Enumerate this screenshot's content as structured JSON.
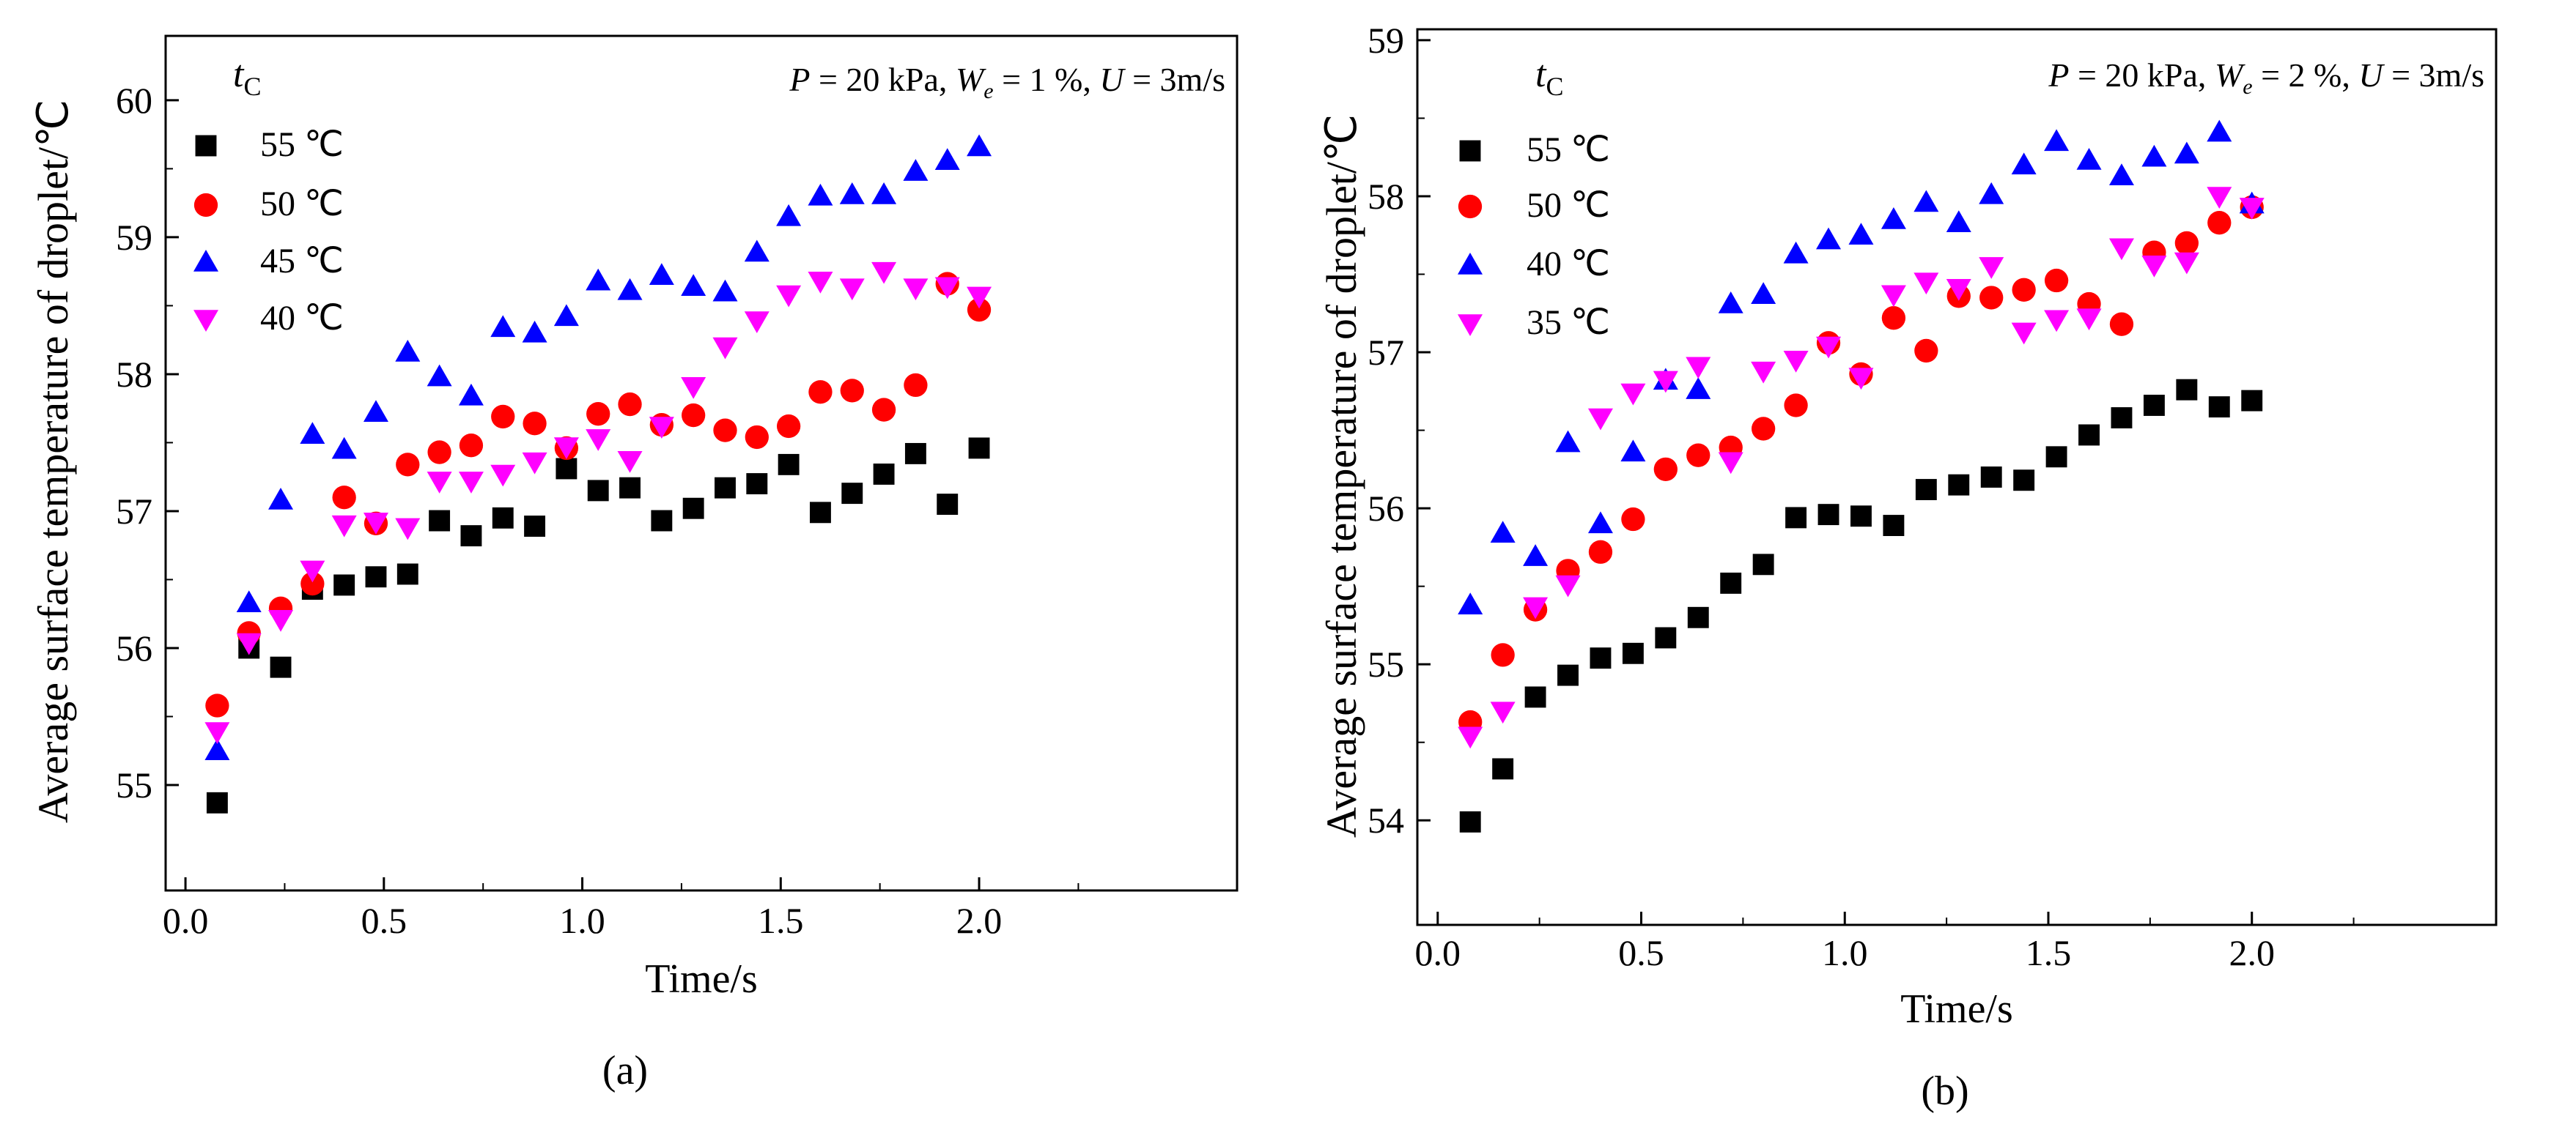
{
  "chart_data": [
    {
      "type": "scatter",
      "panel_label": "(a)",
      "xlabel": "Time/s",
      "ylabel": "Average surface temperature of droplet/℃",
      "xlim": [
        -0.05,
        2.65
      ],
      "ylim": [
        54.23,
        60.47
      ],
      "xticks": [
        0.0,
        0.5,
        1.0,
        1.5,
        2.0
      ],
      "xtick_labels": [
        "0.0",
        "0.5",
        "1.0",
        "1.5",
        "2.0"
      ],
      "yticks": [
        55,
        56,
        57,
        58,
        59,
        60
      ],
      "ytick_labels": [
        "55",
        "56",
        "57",
        "58",
        "59",
        "60"
      ],
      "legend_title": "t",
      "legend_title_sub": "C",
      "annotation": {
        "p_label": "P",
        "p_value": " = 20 kPa, ",
        "w_label": "W",
        "w_sub": "e",
        "w_value": " = 1 %, ",
        "u_label": "U",
        "u_value": " = 3m/s"
      },
      "x": [
        0.08,
        0.16,
        0.24,
        0.32,
        0.4,
        0.48,
        0.56,
        0.64,
        0.72,
        0.8,
        0.88,
        0.96,
        1.04,
        1.12,
        1.2,
        1.28,
        1.36,
        1.44,
        1.52,
        1.6,
        1.68,
        1.76,
        1.84,
        1.92,
        2.0
      ],
      "series": [
        {
          "name": "55 ℃",
          "marker": "square",
          "color": "#000000",
          "values": [
            54.87,
            56.0,
            55.86,
            56.43,
            56.46,
            56.52,
            56.54,
            56.93,
            56.82,
            56.95,
            56.89,
            57.31,
            57.15,
            57.17,
            56.93,
            57.02,
            57.17,
            57.2,
            57.34,
            56.99,
            57.13,
            57.27,
            57.42,
            57.05,
            57.46
          ]
        },
        {
          "name": "50 ℃",
          "marker": "circle",
          "color": "#ff0000",
          "values": [
            55.58,
            56.11,
            56.29,
            56.47,
            57.1,
            56.91,
            57.34,
            57.43,
            57.48,
            57.69,
            57.64,
            57.46,
            57.71,
            57.78,
            57.63,
            57.7,
            57.59,
            57.54,
            57.62,
            57.87,
            57.88,
            57.74,
            57.92,
            58.66,
            58.47
          ]
        },
        {
          "name": "45 ℃",
          "marker": "triangle-up",
          "color": "#0000ff",
          "values": [
            55.25,
            56.33,
            57.08,
            57.56,
            57.45,
            57.72,
            58.16,
            57.98,
            57.84,
            58.34,
            58.3,
            58.42,
            58.68,
            58.61,
            58.72,
            58.64,
            58.6,
            58.89,
            59.15,
            59.3,
            59.31,
            59.31,
            59.48,
            59.56,
            59.66
          ]
        },
        {
          "name": "40 ℃",
          "marker": "triangle-down",
          "color": "#ff00ff",
          "values": [
            55.39,
            56.04,
            56.21,
            56.57,
            56.9,
            56.92,
            56.88,
            57.22,
            57.22,
            57.27,
            57.36,
            57.47,
            57.53,
            57.37,
            57.62,
            57.91,
            58.2,
            58.39,
            58.58,
            58.68,
            58.63,
            58.75,
            58.63,
            58.64,
            58.57
          ]
        }
      ]
    },
    {
      "type": "scatter",
      "panel_label": "(b)",
      "xlabel": "Time/s",
      "ylabel": "Average surface temperature of droplet/℃",
      "xlim": [
        -0.05,
        2.6
      ],
      "ylim": [
        53.33,
        59.07
      ],
      "xticks": [
        0.0,
        0.5,
        1.0,
        1.5,
        2.0
      ],
      "xtick_labels": [
        "0.0",
        "0.5",
        "1.0",
        "1.5",
        "2.0"
      ],
      "yticks": [
        54,
        55,
        56,
        57,
        58,
        59
      ],
      "ytick_labels": [
        "54",
        "55",
        "56",
        "57",
        "58",
        "59"
      ],
      "legend_title": "t",
      "legend_title_sub": "C",
      "annotation": {
        "p_label": "P",
        "p_value": " = 20 kPa, ",
        "w_label": "W",
        "w_sub": "e",
        "w_value": " = 2 %, ",
        "u_label": "U",
        "u_value": " = 3m/s"
      },
      "x": [
        0.08,
        0.16,
        0.24,
        0.32,
        0.4,
        0.48,
        0.56,
        0.64,
        0.72,
        0.8,
        0.88,
        0.96,
        1.04,
        1.12,
        1.2,
        1.28,
        1.36,
        1.44,
        1.52,
        1.6,
        1.68,
        1.76,
        1.84,
        1.92,
        2.0
      ],
      "series": [
        {
          "name": "55 ℃",
          "marker": "square",
          "color": "#000000",
          "values": [
            53.99,
            54.33,
            54.79,
            54.93,
            55.04,
            55.07,
            55.17,
            55.3,
            55.52,
            55.64,
            55.94,
            55.96,
            55.95,
            55.89,
            56.12,
            56.15,
            56.2,
            56.18,
            56.33,
            56.47,
            56.58,
            56.66,
            56.76,
            56.65,
            56.69
          ]
        },
        {
          "name": "50 ℃",
          "marker": "circle",
          "color": "#ff0000",
          "values": [
            54.63,
            55.06,
            55.35,
            55.6,
            55.72,
            55.93,
            56.25,
            56.34,
            56.39,
            56.51,
            56.66,
            57.06,
            56.86,
            57.22,
            57.01,
            57.36,
            57.35,
            57.4,
            57.46,
            57.31,
            57.18,
            57.64,
            57.7,
            57.83,
            57.93
          ]
        },
        {
          "name": "40 ℃",
          "marker": "triangle-up",
          "color": "#0000ff",
          "values": [
            55.38,
            55.84,
            55.69,
            56.42,
            55.9,
            56.36,
            56.82,
            56.76,
            57.31,
            57.37,
            57.63,
            57.72,
            57.75,
            57.85,
            57.96,
            57.83,
            58.01,
            58.2,
            58.35,
            58.23,
            58.13,
            58.25,
            58.27,
            58.41,
            57.95
          ]
        },
        {
          "name": "35 ℃",
          "marker": "triangle-down",
          "color": "#ff00ff",
          "values": [
            54.54,
            54.7,
            55.37,
            55.51,
            56.58,
            56.74,
            56.82,
            56.91,
            56.3,
            56.88,
            56.95,
            57.04,
            56.84,
            57.37,
            57.45,
            57.41,
            57.55,
            57.13,
            57.21,
            57.22,
            57.67,
            57.56,
            57.58,
            58.0,
            57.93
          ]
        }
      ]
    }
  ]
}
